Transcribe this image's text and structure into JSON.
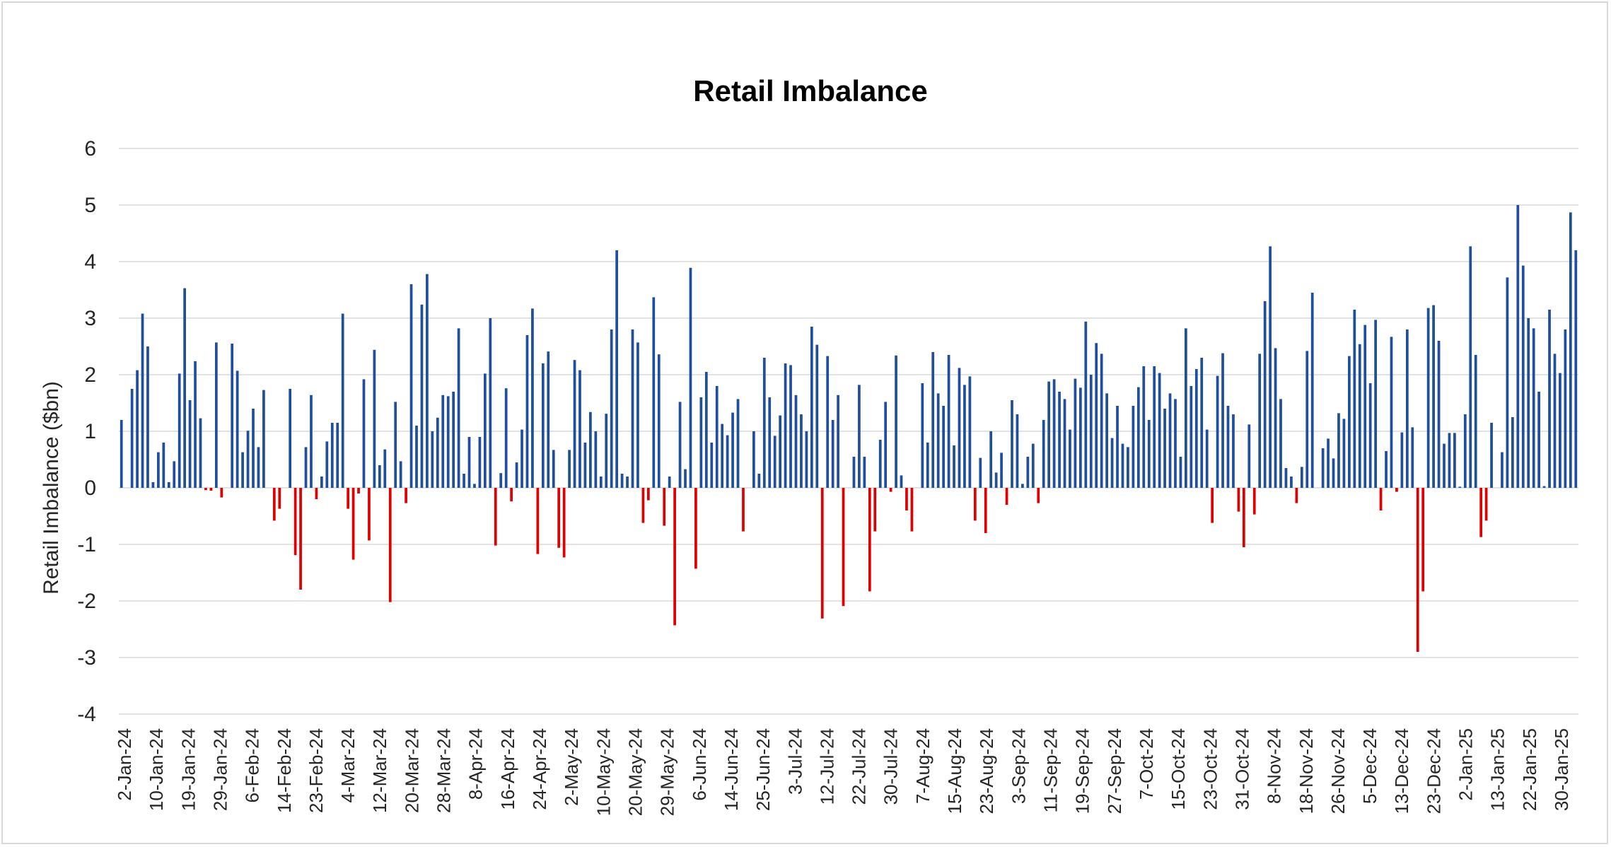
{
  "chart_data": {
    "type": "bar",
    "title": "Retail Imbalance",
    "ylabel": "Retail Imbalance ($bn)",
    "xlabel": "",
    "ylim": [
      -4,
      6
    ],
    "yticks": [
      -4,
      -3,
      -2,
      -1,
      0,
      1,
      2,
      3,
      4,
      5,
      6
    ],
    "grid": true,
    "legend": "none",
    "colors": {
      "positive": "#1f4e9c",
      "negative": "#e00000",
      "grid": "#d9d9d9"
    },
    "xtick_labels": [
      "2-Jan-24",
      "10-Jan-24",
      "19-Jan-24",
      "29-Jan-24",
      "6-Feb-24",
      "14-Feb-24",
      "23-Feb-24",
      "4-Mar-24",
      "12-Mar-24",
      "20-Mar-24",
      "28-Mar-24",
      "8-Apr-24",
      "16-Apr-24",
      "24-Apr-24",
      "2-May-24",
      "10-May-24",
      "20-May-24",
      "29-May-24",
      "6-Jun-24",
      "14-Jun-24",
      "25-Jun-24",
      "3-Jul-24",
      "12-Jul-24",
      "22-Jul-24",
      "30-Jul-24",
      "7-Aug-24",
      "15-Aug-24",
      "23-Aug-24",
      "3-Sep-24",
      "11-Sep-24",
      "19-Sep-24",
      "27-Sep-24",
      "7-Oct-24",
      "15-Oct-24",
      "23-Oct-24",
      "31-Oct-24",
      "8-Nov-24",
      "18-Nov-24",
      "26-Nov-24",
      "5-Dec-24",
      "13-Dec-24",
      "23-Dec-24",
      "2-Jan-25",
      "13-Jan-25",
      "22-Jan-25",
      "30-Jan-25"
    ],
    "values": [
      1.2,
      0,
      1.75,
      2.08,
      3.08,
      2.5,
      0.1,
      0.63,
      0.8,
      0.1,
      0.47,
      2.02,
      3.53,
      1.55,
      2.24,
      1.23,
      -0.04,
      -0.05,
      2.57,
      -0.17,
      0,
      2.55,
      2.07,
      0.63,
      1.01,
      1.4,
      0.72,
      1.73,
      0,
      -0.58,
      -0.37,
      0,
      1.75,
      -1.19,
      -1.8,
      0.72,
      1.64,
      -0.2,
      0.2,
      0.82,
      1.15,
      1.15,
      3.08,
      -0.37,
      -1.27,
      -0.1,
      1.92,
      -0.93,
      2.44,
      0.4,
      0.68,
      -2.02,
      1.52,
      0.47,
      -0.27,
      3.6,
      1.1,
      3.24,
      3.78,
      1.0,
      1.24,
      1.64,
      1.62,
      1.7,
      2.82,
      0.25,
      0.9,
      0.07,
      0.9,
      2.02,
      3.0,
      -1.02,
      0.26,
      1.76,
      -0.24,
      0.45,
      1.03,
      2.7,
      3.17,
      -1.17,
      2.2,
      2.41,
      0.67,
      -1.06,
      -1.23,
      0.67,
      2.26,
      2.08,
      0.8,
      1.34,
      1.0,
      0.2,
      1.31,
      2.8,
      4.2,
      0.25,
      0.2,
      2.8,
      2.57,
      -0.62,
      -0.22,
      3.37,
      2.36,
      -0.67,
      0.2,
      -2.43,
      1.52,
      0.33,
      3.89,
      -1.43,
      1.6,
      2.05,
      0.8,
      1.8,
      1.13,
      0.93,
      1.33,
      1.57,
      -0.77,
      0,
      1.0,
      0.25,
      2.3,
      1.6,
      0.92,
      1.28,
      2.2,
      2.17,
      1.64,
      1.3,
      1.0,
      2.85,
      2.53,
      -2.31,
      2.33,
      1.2,
      1.64,
      -2.09,
      0,
      0.55,
      1.82,
      0.55,
      -1.83,
      -0.77,
      0.85,
      1.52,
      -0.07,
      2.34,
      0.22,
      -0.4,
      -0.77,
      0,
      1.85,
      0.8,
      2.4,
      1.67,
      1.45,
      2.35,
      0.75,
      2.12,
      1.82,
      1.97,
      -0.58,
      0.53,
      -0.8,
      1.0,
      0.27,
      0.62,
      -0.3,
      1.55,
      1.3,
      0.07,
      0.55,
      0.78,
      -0.27,
      1.2,
      1.88,
      1.92,
      1.7,
      1.57,
      1.03,
      1.93,
      1.77,
      2.94,
      2.0,
      2.56,
      2.37,
      1.67,
      0.88,
      1.45,
      0.78,
      0.72,
      1.45,
      1.78,
      2.15,
      1.2,
      2.15,
      2.03,
      1.4,
      1.67,
      1.57,
      0.55,
      2.82,
      1.8,
      2.1,
      2.3,
      1.03,
      -0.62,
      1.98,
      2.38,
      1.45,
      1.3,
      -0.42,
      -1.05,
      1.12,
      -0.47,
      2.37,
      3.3,
      4.27,
      2.47,
      1.57,
      0.35,
      0.2,
      -0.27,
      0.37,
      2.42,
      3.45,
      0,
      0.7,
      0.87,
      0.52,
      1.32,
      1.22,
      2.33,
      3.15,
      2.54,
      2.88,
      1.85,
      2.97,
      -0.4,
      0.65,
      2.67,
      -0.07,
      0.98,
      2.8,
      1.07,
      -2.9,
      -1.83,
      3.18,
      3.23,
      2.6,
      0.78,
      0.97,
      0.97,
      0.02,
      1.3,
      4.27,
      2.35,
      -0.87,
      -0.58,
      1.15,
      0,
      0.63,
      3.72,
      1.25,
      5.0,
      3.93,
      3.0,
      2.82,
      1.7,
      0.03,
      3.15,
      2.37,
      2.03,
      2.8,
      4.87,
      4.2
    ]
  }
}
